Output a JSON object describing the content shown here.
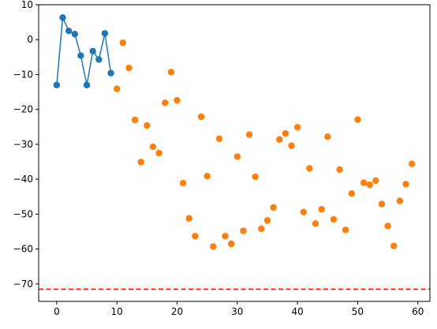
{
  "chart_data": {
    "type": "scatter",
    "title": "",
    "xlabel": "",
    "ylabel": "",
    "xlim": [
      -3,
      62
    ],
    "ylim": [
      -75,
      10
    ],
    "xticks": [
      0,
      10,
      20,
      30,
      40,
      50,
      60
    ],
    "yticks": [
      10,
      0,
      -10,
      -20,
      -30,
      -40,
      -50,
      -60,
      -70
    ],
    "xtick_labels": [
      "0",
      "10",
      "20",
      "30",
      "40",
      "50",
      "60"
    ],
    "ytick_labels": [
      "10",
      "0",
      "−10",
      "−20",
      "−30",
      "−40",
      "−50",
      "−60",
      "−70"
    ],
    "grid": false,
    "series": [
      {
        "kind": "line+markers",
        "color": "#1f77b4",
        "x": [
          0,
          1,
          2,
          3,
          4,
          5,
          6,
          7,
          8,
          9
        ],
        "y": [
          -13.0,
          6.3,
          2.5,
          1.6,
          -4.6,
          -13.0,
          -3.3,
          -5.7,
          1.8,
          -9.6
        ]
      },
      {
        "kind": "scatter",
        "color": "#ff7f0e",
        "x": [
          10,
          11,
          12,
          13,
          14,
          15,
          16,
          17,
          18,
          19,
          20,
          21,
          22,
          23,
          24,
          25,
          26,
          27,
          28,
          29,
          30,
          31,
          32,
          33,
          34,
          35,
          36,
          37,
          38,
          39,
          40,
          41,
          42,
          43,
          44,
          45,
          46,
          47,
          48,
          49,
          50,
          51,
          52,
          53,
          54,
          55,
          56,
          57,
          58,
          59
        ],
        "y": [
          -14.1,
          -0.9,
          -8.1,
          -23.0,
          -35.1,
          -24.6,
          -30.7,
          -32.5,
          -18.1,
          -9.3,
          -17.4,
          -41.1,
          -51.2,
          -56.3,
          -22.1,
          -39.1,
          -59.3,
          -28.4,
          -56.3,
          -58.5,
          -33.5,
          -54.8,
          -27.2,
          -39.3,
          -54.2,
          -51.8,
          -48.1,
          -28.6,
          -26.9,
          -30.4,
          -25.1,
          -49.4,
          -36.9,
          -52.7,
          -48.6,
          -27.8,
          -51.5,
          -37.2,
          -54.5,
          -44.1,
          -22.9,
          -41.0,
          -41.6,
          -40.4,
          -47.1,
          -53.4,
          -59.1,
          -46.2,
          -41.4,
          -35.6
        ]
      }
    ],
    "hline": {
      "y": -71.5,
      "color": "#ff0000",
      "style": "dashed"
    }
  }
}
